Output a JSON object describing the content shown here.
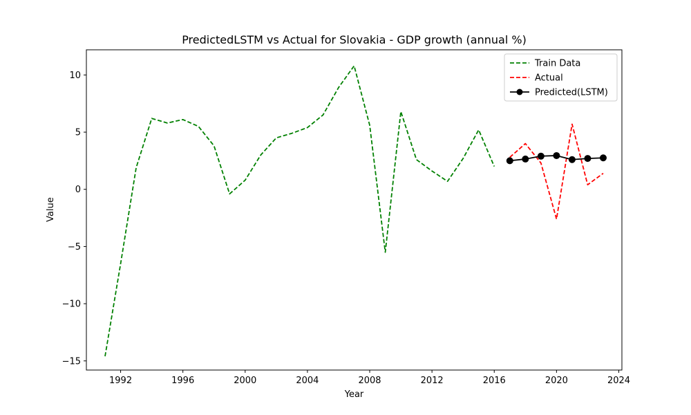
{
  "chart_data": {
    "type": "line",
    "title": "PredictedLSTM vs Actual for Slovakia - GDP growth (annual %)",
    "xlabel": "Year",
    "ylabel": "Value",
    "xlim": [
      1989.8,
      2024.2
    ],
    "ylim": [
      -15.8,
      12.2
    ],
    "xticks": [
      1992,
      1996,
      2000,
      2004,
      2008,
      2012,
      2016,
      2020,
      2024
    ],
    "yticks": [
      -15,
      -10,
      -5,
      0,
      5,
      10
    ],
    "grid": false,
    "legend_position": "top-right",
    "series": [
      {
        "name": "Train Data",
        "color": "#008000",
        "style": "dashed",
        "marker": "none",
        "x": [
          1991,
          1992,
          1993,
          1994,
          1995,
          1996,
          1997,
          1998,
          1999,
          2000,
          2001,
          2002,
          2003,
          2004,
          2005,
          2006,
          2007,
          2008,
          2009,
          2010,
          2011,
          2012,
          2013,
          2014,
          2015,
          2016
        ],
        "y": [
          -14.6,
          -6.5,
          1.9,
          6.2,
          5.8,
          6.1,
          5.5,
          3.8,
          -0.4,
          0.8,
          3.0,
          4.5,
          4.9,
          5.4,
          6.5,
          8.9,
          10.8,
          5.6,
          -5.5,
          6.8,
          2.6,
          1.6,
          0.7,
          2.7,
          5.2,
          2.0
        ]
      },
      {
        "name": "Actual",
        "color": "#ff0000",
        "style": "dashed",
        "marker": "none",
        "x": [
          2017,
          2018,
          2019,
          2020,
          2021,
          2022,
          2023
        ],
        "y": [
          2.8,
          4.0,
          2.3,
          -2.6,
          5.7,
          0.4,
          1.4
        ]
      },
      {
        "name": "Predicted(LSTM)",
        "color": "#000000",
        "style": "solid",
        "marker": "circle",
        "x": [
          2017,
          2018,
          2019,
          2020,
          2021,
          2022,
          2023
        ],
        "y": [
          2.5,
          2.65,
          2.9,
          2.95,
          2.6,
          2.7,
          2.75
        ]
      }
    ]
  }
}
